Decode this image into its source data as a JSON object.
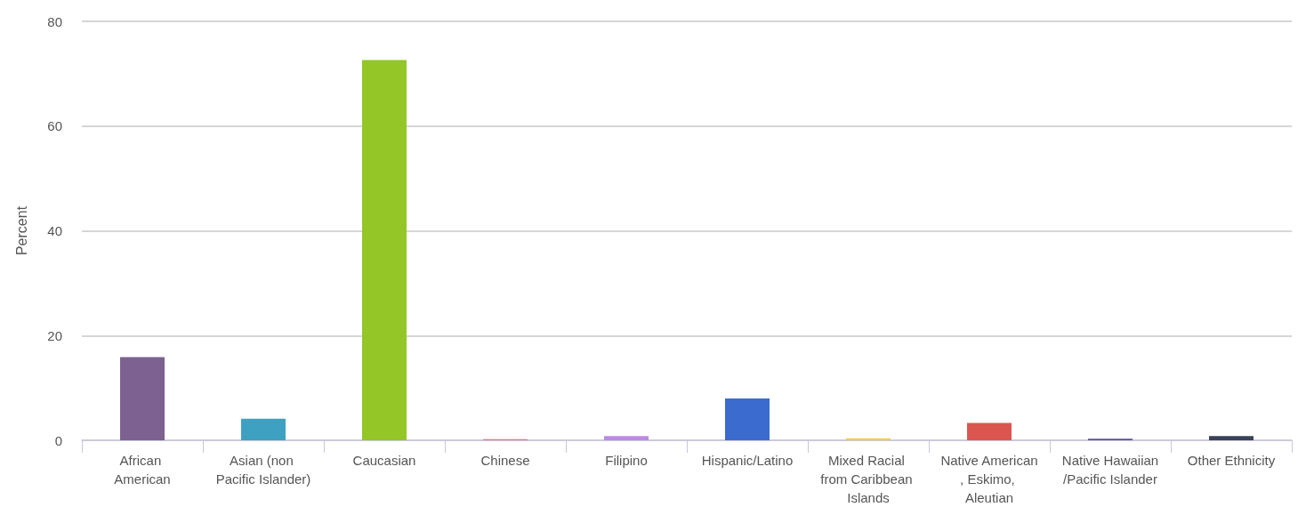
{
  "chart_data": {
    "type": "bar",
    "ylabel": "Percent",
    "categories": [
      "African American",
      "Asian (non Pacific Islander)",
      "Caucasian",
      "Chinese",
      "Filipino",
      "Hispanic/Latino",
      "Mixed Racial from Caribbean Islands",
      "Native American, Eskimo, Aleutian",
      "Native Hawaiian/Pacific Islander",
      "Other Ethnicity"
    ],
    "values": [
      15.9,
      4.1,
      72.6,
      0.2,
      0.8,
      8.0,
      0.4,
      3.3,
      0.3,
      0.8
    ],
    "colors": [
      "#7d6190",
      "#3fa1c1",
      "#93c626",
      "#f06b8e",
      "#bc8be0",
      "#3b6bcf",
      "#f4cf3b",
      "#dc5650",
      "#5a50a0",
      "#3a4257"
    ],
    "ylim": [
      0,
      80
    ],
    "yticks": [
      0,
      20,
      40,
      60,
      80
    ],
    "grid": "y"
  }
}
